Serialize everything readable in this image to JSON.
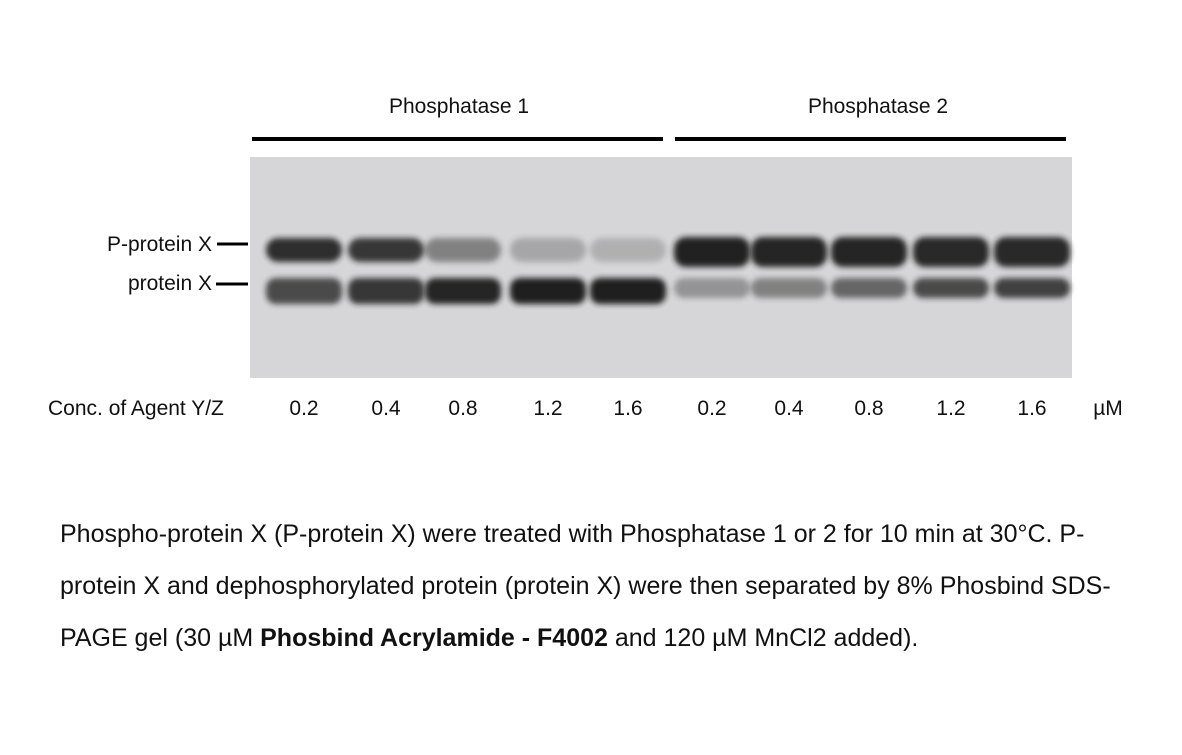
{
  "groups": [
    {
      "label": "Phosphatase 1"
    },
    {
      "label": "Phosphatase 2"
    }
  ],
  "markers": [
    "P-protein X",
    "protein X"
  ],
  "concentration_label": "Conc. of Agent Y/Z",
  "concentrations": [
    0.2,
    0.4,
    0.8,
    1.2,
    1.6,
    0.2,
    0.4,
    0.8,
    1.2,
    1.6
  ],
  "unit": "µM",
  "caption": {
    "before": "Phospho-protein X (P-protein X) were treated with Phosphatase 1 or 2 for 10 min at 30°C. P-protein X and dephosphorylated protein (protein X) were then separated by 8% Phosbind SDS-PAGE gel (30 µM ",
    "bold": "Phosbind Acrylamide - F4002",
    "after": " and 120 µM MnCl2 added)."
  }
}
